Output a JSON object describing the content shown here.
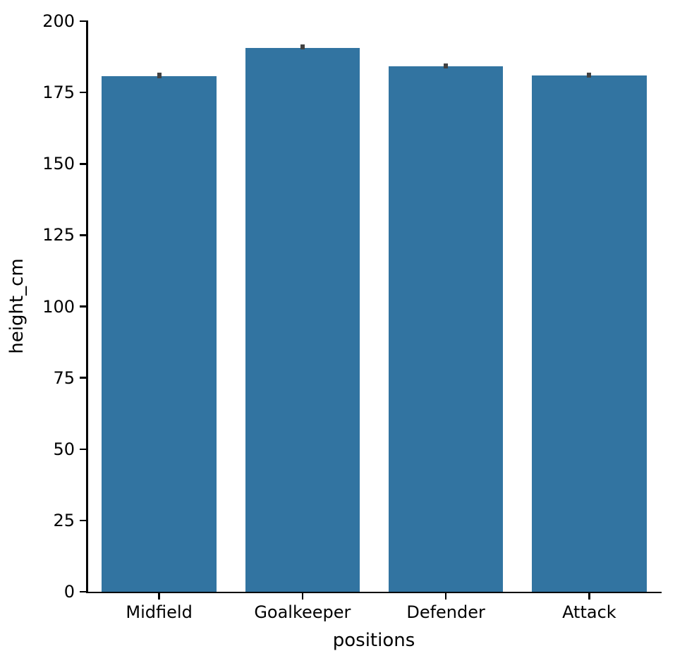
{
  "figure": {
    "background": "#ffffff"
  },
  "chart_data": {
    "type": "bar",
    "title": "",
    "xlabel": "positions",
    "ylabel": "height_cm",
    "categories": [
      "Midfield",
      "Goalkeeper",
      "Defender",
      "Attack"
    ],
    "values": [
      180.7,
      190.6,
      184.3,
      181.0
    ],
    "error_bars_ci": [
      [
        180.0,
        181.9
      ],
      [
        190.0,
        191.8
      ],
      [
        183.5,
        185.2
      ],
      [
        180.2,
        182.0
      ]
    ],
    "ylim": [
      0,
      200
    ],
    "yticks": [
      0,
      25,
      50,
      75,
      100,
      125,
      150,
      175,
      200
    ],
    "grid": false,
    "legend": false,
    "bar_width_fraction": 0.8,
    "bar_color": "#3274a1",
    "error_bar_color": "#424242",
    "axis_color": "#000000",
    "despine": "top-right"
  }
}
